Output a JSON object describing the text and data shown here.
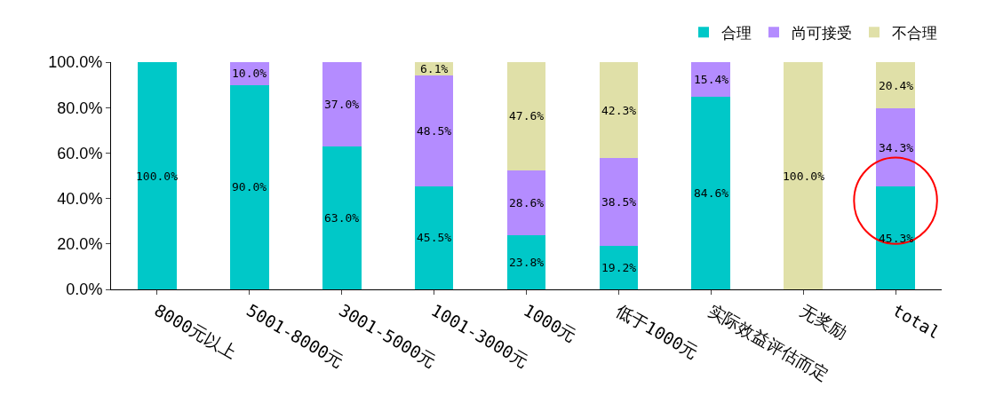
{
  "chart_data": {
    "type": "bar",
    "stacked": true,
    "categories": [
      "8000元以上",
      "5001-8000元",
      "3001-5000元",
      "1001-3000元",
      "1000元",
      "低于1000元",
      "实际效益评估而定",
      "无奖励",
      "total"
    ],
    "series": [
      {
        "name": "合理",
        "color": "#00c8c8",
        "values": [
          100,
          90,
          63,
          45.5,
          23.8,
          19.2,
          84.6,
          0,
          45.3
        ],
        "value_labels": [
          "100.0%",
          "90.0%",
          "63.0%",
          "45.5%",
          "23.8%",
          "19.2%",
          "84.6%",
          null,
          "45.3%"
        ]
      },
      {
        "name": "尚可接受",
        "color": "#b48cff",
        "values": [
          0,
          10,
          37,
          48.5,
          28.6,
          38.5,
          15.4,
          0,
          34.3
        ],
        "value_labels": [
          null,
          "10.0%",
          "37.0%",
          "48.5%",
          "28.6%",
          "38.5%",
          "15.4%",
          null,
          "34.3%"
        ]
      },
      {
        "name": "不合理",
        "color": "#e0e0a8",
        "values": [
          0,
          0,
          0,
          6.1,
          47.6,
          42.3,
          0,
          100,
          20.4
        ],
        "value_labels": [
          null,
          null,
          null,
          "6.1%",
          "47.6%",
          "42.3%",
          null,
          "100.0%",
          "20.4%"
        ]
      }
    ],
    "ylim": [
      0,
      100
    ],
    "yticks": [
      {
        "value": 0,
        "label": "0.0%"
      },
      {
        "value": 20,
        "label": "20.0%"
      },
      {
        "value": 40,
        "label": "40.0%"
      },
      {
        "value": 60,
        "label": "60.0%"
      },
      {
        "value": 80,
        "label": "80.0%"
      },
      {
        "value": 100,
        "label": "100.0%"
      }
    ],
    "legend": "top right"
  }
}
